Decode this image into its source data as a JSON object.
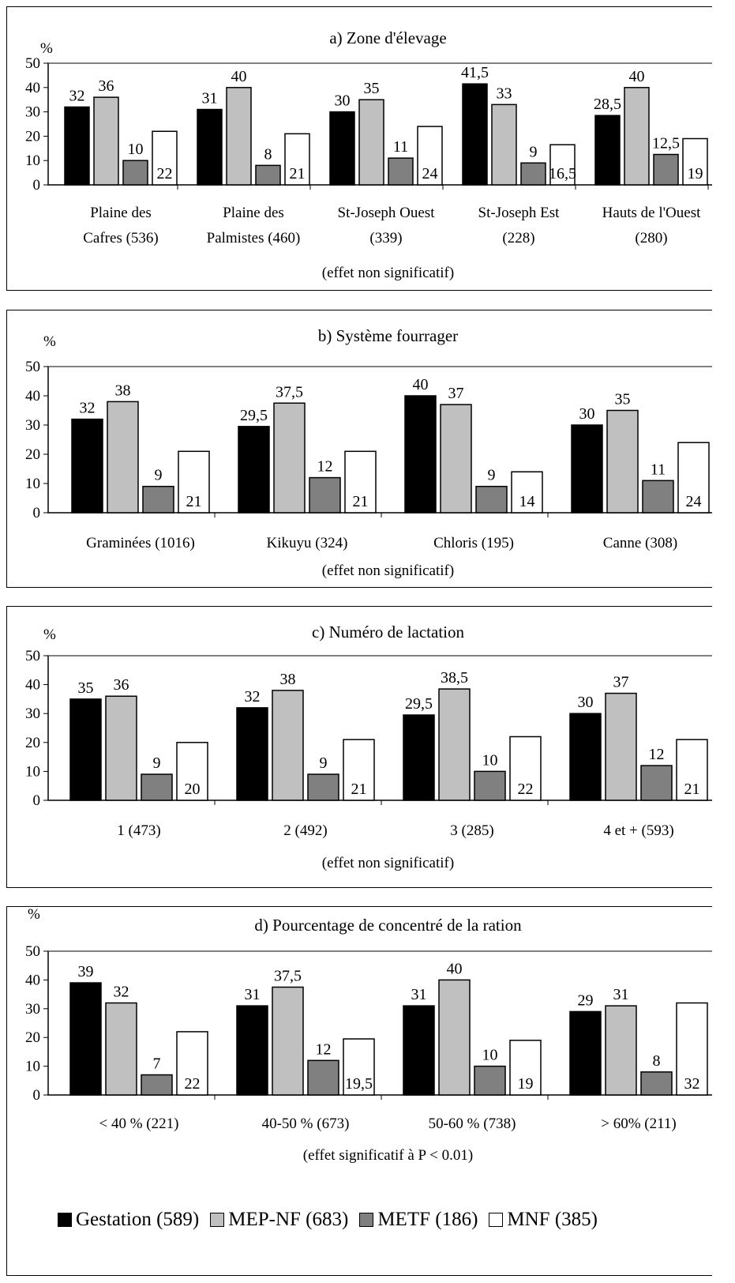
{
  "chart_data": [
    {
      "type": "bar",
      "title": "a) Zone d'élevage",
      "ylabel": "%",
      "ylim": [
        0,
        50
      ],
      "yticks": [
        "0",
        "10",
        "20",
        "30",
        "40",
        "50"
      ],
      "categories": [
        [
          "Plaine des",
          "Cafres (536)"
        ],
        [
          "Plaine des",
          "Palmistes (460)"
        ],
        [
          "St-Joseph Ouest",
          "(339)"
        ],
        [
          "St-Joseph Est",
          "(228)"
        ],
        [
          "Hauts de l'Ouest",
          "(280)"
        ]
      ],
      "note": "(effet non significatif)",
      "series": [
        {
          "name": "Gestation (589)",
          "values": [
            32,
            31,
            30,
            41.5,
            28.5
          ],
          "labels": [
            "32",
            "31",
            "30",
            "41,5",
            "28,5"
          ]
        },
        {
          "name": "MEP-NF (683)",
          "values": [
            36,
            40,
            35,
            33,
            40
          ],
          "labels": [
            "36",
            "40",
            "35",
            "33",
            "40"
          ]
        },
        {
          "name": "METF (186)",
          "values": [
            10,
            8,
            11,
            9,
            12.5
          ],
          "labels": [
            "10",
            "8",
            "11",
            "9",
            "12,5"
          ]
        },
        {
          "name": "MNF (385)",
          "values": [
            22,
            21,
            24,
            16.5,
            19
          ],
          "labels": [
            "22",
            "21",
            "24",
            "16,5",
            "19"
          ]
        }
      ]
    },
    {
      "type": "bar",
      "title": "b) Système fourrager",
      "ylabel": "%",
      "ylim": [
        0,
        50
      ],
      "yticks": [
        "0",
        "10",
        "20",
        "30",
        "40",
        "50"
      ],
      "categories": [
        [
          "Graminées (1016)"
        ],
        [
          "Kikuyu (324)"
        ],
        [
          "Chloris (195)"
        ],
        [
          "Canne (308)"
        ]
      ],
      "note": "(effet non significatif)",
      "series": [
        {
          "name": "Gestation (589)",
          "values": [
            32,
            29.5,
            40,
            30
          ],
          "labels": [
            "32",
            "29,5",
            "40",
            "30"
          ]
        },
        {
          "name": "MEP-NF (683)",
          "values": [
            38,
            37.5,
            37,
            35
          ],
          "labels": [
            "38",
            "37,5",
            "37",
            "35"
          ]
        },
        {
          "name": "METF (186)",
          "values": [
            9,
            12,
            9,
            11
          ],
          "labels": [
            "9",
            "12",
            "9",
            "11"
          ]
        },
        {
          "name": "MNF (385)",
          "values": [
            21,
            21,
            14,
            24
          ],
          "labels": [
            "21",
            "21",
            "14",
            "24"
          ]
        }
      ]
    },
    {
      "type": "bar",
      "title": "c) Numéro de lactation",
      "ylabel": "%",
      "ylim": [
        0,
        50
      ],
      "yticks": [
        "0",
        "10",
        "20",
        "30",
        "40",
        "50"
      ],
      "categories": [
        [
          "1 (473)"
        ],
        [
          "2 (492)"
        ],
        [
          "3 (285)"
        ],
        [
          "4 et + (593)"
        ]
      ],
      "note": "(effet non significatif)",
      "series": [
        {
          "name": "Gestation (589)",
          "values": [
            35,
            32,
            29.5,
            30
          ],
          "labels": [
            "35",
            "32",
            "29,5",
            "30"
          ]
        },
        {
          "name": "MEP-NF (683)",
          "values": [
            36,
            38,
            38.5,
            37
          ],
          "labels": [
            "36",
            "38",
            "38,5",
            "37"
          ]
        },
        {
          "name": "METF (186)",
          "values": [
            9,
            9,
            10,
            12
          ],
          "labels": [
            "9",
            "9",
            "10",
            "12"
          ]
        },
        {
          "name": "MNF (385)",
          "values": [
            20,
            21,
            22,
            21
          ],
          "labels": [
            "20",
            "21",
            "22",
            "21"
          ]
        }
      ]
    },
    {
      "type": "bar",
      "title": "d) Pourcentage de concentré de la ration",
      "ylabel": "%",
      "ylim": [
        0,
        50
      ],
      "yticks": [
        "0",
        "10",
        "20",
        "30",
        "40",
        "50"
      ],
      "categories": [
        [
          "< 40 % (221)"
        ],
        [
          "40-50 % (673)"
        ],
        [
          "50-60 % (738)"
        ],
        [
          "> 60% (211)"
        ]
      ],
      "note": "(effet significatif à P < 0.01)",
      "series": [
        {
          "name": "Gestation (589)",
          "values": [
            39,
            31,
            31,
            29
          ],
          "labels": [
            "39",
            "31",
            "31",
            "29"
          ]
        },
        {
          "name": "MEP-NF (683)",
          "values": [
            32,
            37.5,
            40,
            31
          ],
          "labels": [
            "32",
            "37,5",
            "40",
            "31"
          ]
        },
        {
          "name": "METF (186)",
          "values": [
            7,
            12,
            10,
            8
          ],
          "labels": [
            "7",
            "12",
            "10",
            "8"
          ]
        },
        {
          "name": "MNF (385)",
          "values": [
            22,
            19.5,
            19,
            32
          ],
          "labels": [
            "22",
            "19,5",
            "19",
            "32"
          ]
        }
      ]
    }
  ],
  "colors": {
    "series": [
      "#000000",
      "#c0c0c0",
      "#808080",
      "#ffffff"
    ],
    "plot_border": "#808080"
  },
  "legend": [
    {
      "label": "Gestation (589)"
    },
    {
      "label": "MEP-NF (683)"
    },
    {
      "label": "METF (186)"
    },
    {
      "label": "MNF (385)"
    }
  ]
}
